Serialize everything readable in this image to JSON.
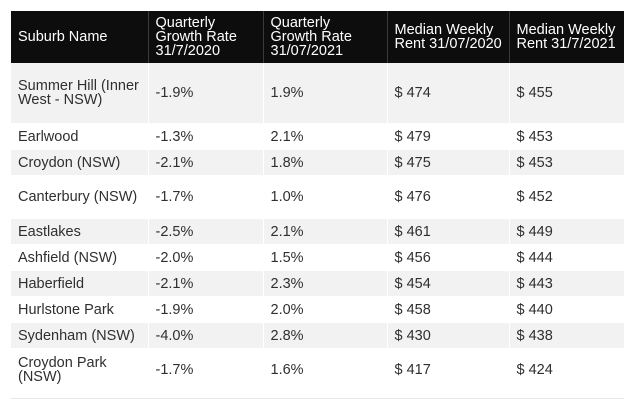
{
  "table": {
    "headers": [
      "Suburb Name",
      "Quarterly Growth Rate 31/7/2020",
      "Quarterly Growth Rate 31/07/2021",
      "Median Weekly Rent 31/07/2020",
      "Median Weekly Rent 31/7/2021"
    ],
    "rows": [
      [
        "Summer Hill (Inner West - NSW)",
        "-1.9%",
        "1.9%",
        "$ 474",
        "$ 455"
      ],
      [
        "Earlwood",
        "-1.3%",
        "2.1%",
        "$ 479",
        "$ 453"
      ],
      [
        "Croydon (NSW)",
        "-2.1%",
        "1.8%",
        "$ 475",
        "$ 453"
      ],
      [
        "Canterbury (NSW)",
        "-1.7%",
        "1.0%",
        "$ 476",
        "$ 452"
      ],
      [
        "Eastlakes",
        "-2.5%",
        "2.1%",
        "$ 461",
        "$ 449"
      ],
      [
        "Ashfield (NSW)",
        "-2.0%",
        "1.5%",
        "$ 456",
        "$ 444"
      ],
      [
        "Haberfield",
        "-2.1%",
        "2.3%",
        "$ 454",
        "$ 443"
      ],
      [
        "Hurlstone Park",
        "-1.9%",
        "2.0%",
        "$ 458",
        "$ 440"
      ],
      [
        "Sydenham (NSW)",
        "-4.0%",
        "2.8%",
        "$ 430",
        "$ 438"
      ],
      [
        "Croydon Park (NSW)",
        "-1.7%",
        "1.6%",
        "$ 417",
        "$ 424"
      ]
    ]
  },
  "colors": {
    "header_bg": "#0d0d0d",
    "header_text": "#ffffff",
    "stripe": "#f2f2f2",
    "body_text": "#2f2f2f"
  }
}
